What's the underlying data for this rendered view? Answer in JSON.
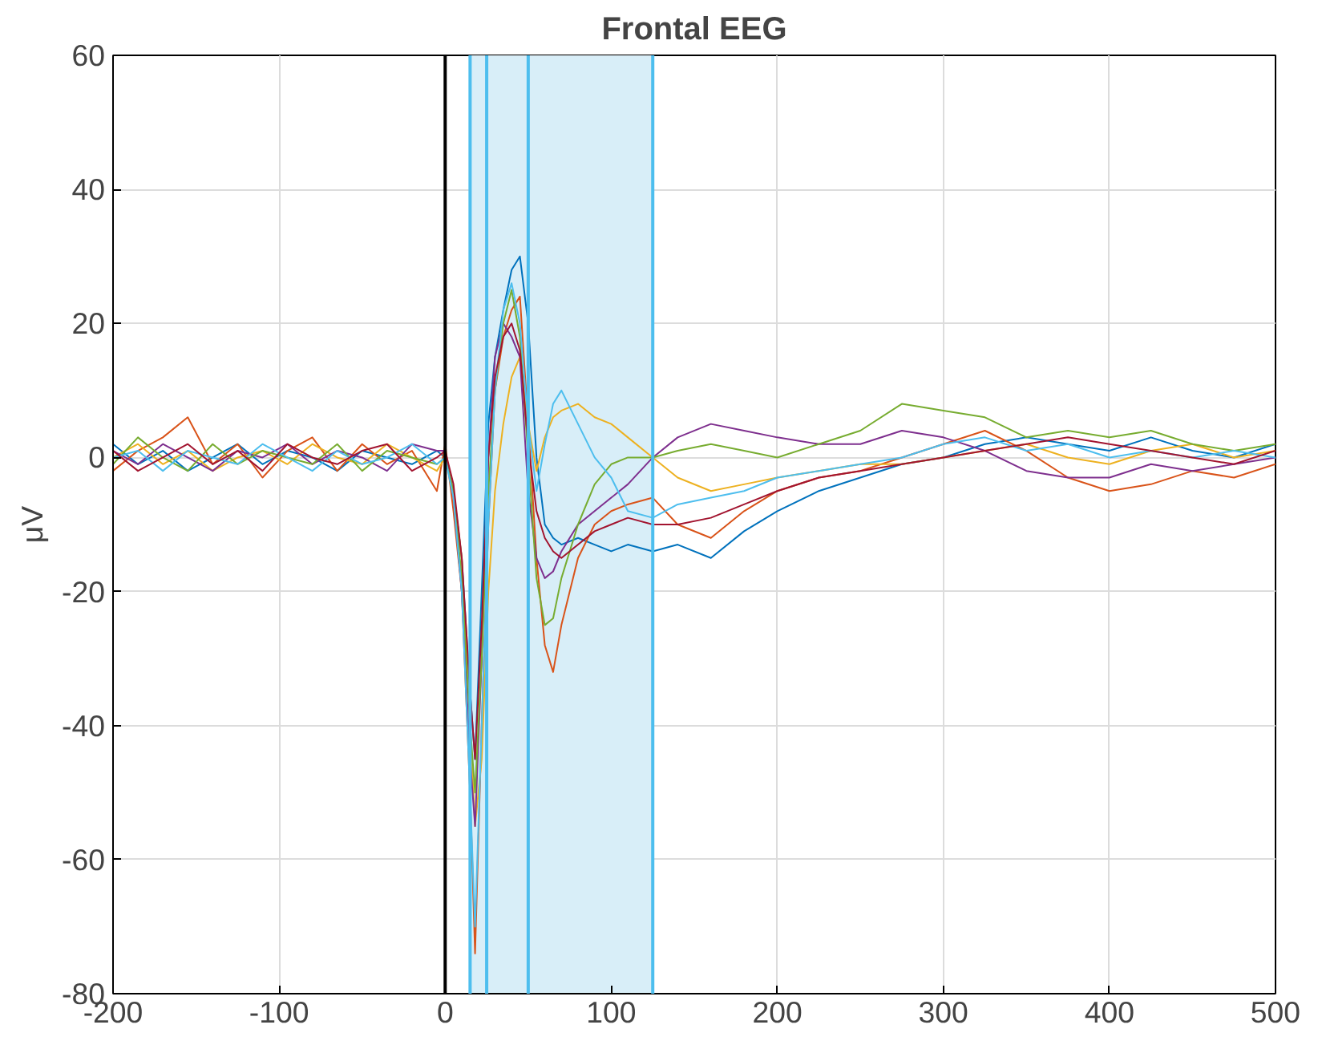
{
  "chart_data": {
    "type": "line",
    "title": "Frontal EEG",
    "ylabel": "μV",
    "x": [
      -200,
      -185,
      -170,
      -155,
      -140,
      -125,
      -110,
      -95,
      -80,
      -65,
      -50,
      -35,
      -20,
      -5,
      0,
      5,
      10,
      15,
      18,
      22,
      26,
      30,
      35,
      40,
      45,
      50,
      55,
      60,
      65,
      70,
      80,
      90,
      100,
      110,
      125,
      140,
      160,
      180,
      200,
      225,
      250,
      275,
      300,
      325,
      350,
      375,
      400,
      425,
      450,
      475,
      500
    ],
    "series": [
      {
        "color": "#0072bd",
        "values": [
          2,
          -1,
          1,
          -2,
          0,
          2,
          -1,
          1,
          0,
          -2,
          1,
          0,
          -1,
          1,
          0,
          -5,
          -15,
          -35,
          -45,
          -20,
          5,
          15,
          22,
          28,
          30,
          20,
          0,
          -10,
          -12,
          -13,
          -12,
          -13,
          -14,
          -13,
          -14,
          -13,
          -15,
          -11,
          -8,
          -5,
          -3,
          -1,
          0,
          2,
          3,
          2,
          1,
          3,
          1,
          0,
          2
        ]
      },
      {
        "color": "#d95319",
        "values": [
          -2,
          1,
          3,
          6,
          -1,
          2,
          -3,
          1,
          3,
          -2,
          2,
          -1,
          1,
          -5,
          2,
          -8,
          -20,
          -50,
          -74,
          -40,
          -10,
          10,
          18,
          22,
          24,
          5,
          -15,
          -28,
          -32,
          -25,
          -15,
          -10,
          -8,
          -7,
          -6,
          -10,
          -12,
          -8,
          -5,
          -3,
          -2,
          0,
          2,
          4,
          1,
          -3,
          -5,
          -4,
          -2,
          -3,
          -1
        ]
      },
      {
        "color": "#edb120",
        "values": [
          0,
          2,
          -1,
          1,
          -2,
          0,
          1,
          -1,
          2,
          0,
          -1,
          2,
          0,
          -2,
          0,
          -5,
          -15,
          -40,
          -55,
          -45,
          -20,
          -5,
          5,
          12,
          15,
          5,
          -2,
          3,
          6,
          7,
          8,
          6,
          5,
          3,
          0,
          -3,
          -5,
          -4,
          -3,
          -2,
          -1,
          -1,
          0,
          1,
          2,
          0,
          -1,
          1,
          2,
          0,
          1
        ]
      },
      {
        "color": "#7e2f8e",
        "values": [
          1,
          -1,
          2,
          0,
          -2,
          1,
          0,
          2,
          -1,
          1,
          0,
          -2,
          2,
          1,
          1,
          -6,
          -20,
          -45,
          -55,
          -30,
          0,
          15,
          20,
          18,
          15,
          -5,
          -15,
          -18,
          -17,
          -14,
          -10,
          -8,
          -6,
          -4,
          0,
          3,
          5,
          4,
          3,
          2,
          2,
          4,
          3,
          1,
          -2,
          -3,
          -3,
          -1,
          -2,
          -1,
          0
        ]
      },
      {
        "color": "#77ac30",
        "values": [
          -1,
          3,
          0,
          -2,
          2,
          -1,
          1,
          0,
          -1,
          2,
          -2,
          1,
          0,
          -1,
          0,
          -5,
          -18,
          -40,
          -50,
          -30,
          -5,
          10,
          20,
          25,
          18,
          0,
          -18,
          -25,
          -24,
          -18,
          -10,
          -4,
          -1,
          0,
          0,
          1,
          2,
          1,
          0,
          2,
          4,
          8,
          7,
          6,
          3,
          4,
          3,
          4,
          2,
          1,
          2
        ]
      },
      {
        "color": "#4dbeee",
        "values": [
          0,
          1,
          -2,
          1,
          0,
          -1,
          2,
          0,
          -2,
          1,
          -1,
          0,
          2,
          -1,
          0,
          -6,
          -20,
          -50,
          -70,
          -40,
          -10,
          10,
          22,
          26,
          20,
          5,
          -5,
          2,
          8,
          10,
          5,
          0,
          -3,
          -8,
          -9,
          -7,
          -6,
          -5,
          -3,
          -2,
          -1,
          0,
          2,
          3,
          1,
          2,
          0,
          1,
          0,
          1,
          0
        ]
      },
      {
        "color": "#a2142f",
        "values": [
          1,
          -2,
          0,
          2,
          -1,
          1,
          -2,
          2,
          0,
          -1,
          1,
          2,
          -2,
          0,
          1,
          -4,
          -15,
          -35,
          -45,
          -25,
          0,
          12,
          18,
          20,
          16,
          2,
          -8,
          -12,
          -14,
          -15,
          -13,
          -11,
          -10,
          -9,
          -10,
          -10,
          -9,
          -7,
          -5,
          -3,
          -2,
          -1,
          0,
          1,
          2,
          3,
          2,
          1,
          0,
          -1,
          1
        ]
      }
    ],
    "xlim": [
      -200,
      500
    ],
    "ylim": [
      -80,
      60
    ],
    "xticks": [
      -200,
      -100,
      0,
      100,
      200,
      300,
      400,
      500
    ],
    "yticks": [
      -80,
      -60,
      -40,
      -20,
      0,
      20,
      40,
      60
    ],
    "grid": true,
    "ref_lines": [
      {
        "axis": "x",
        "value": 0,
        "color": "#000000"
      },
      {
        "axis": "x",
        "value": 15,
        "color": "#4dbeee"
      },
      {
        "axis": "x",
        "value": 25,
        "color": "#4dbeee"
      },
      {
        "axis": "x",
        "value": 50,
        "color": "#4dbeee"
      },
      {
        "axis": "x",
        "value": 125,
        "color": "#4dbeee"
      }
    ],
    "bands": [
      {
        "axis": "x",
        "from": 15,
        "to": 125,
        "color": "#d8eef8"
      }
    ]
  }
}
